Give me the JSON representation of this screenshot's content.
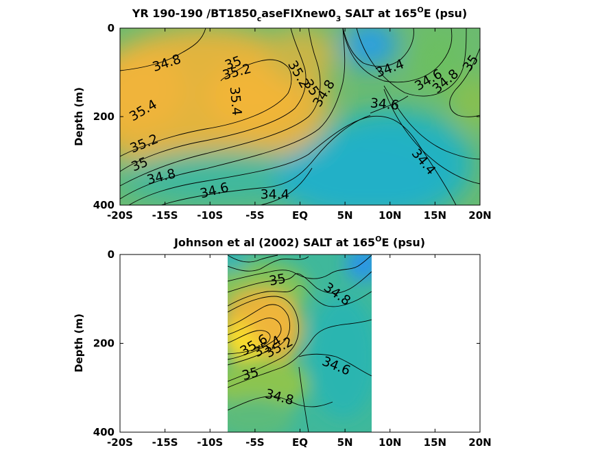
{
  "chart_data": [
    {
      "type": "heatmap",
      "title_main": "YR 190-190 /BT1850",
      "title_sub": "c",
      "title_mid": "aseFIXnew0",
      "title_sub2": "3",
      "title_tail_a": " SALT at 165",
      "title_sup": "O",
      "title_tail_b": "E (psu)",
      "ylabel": "Depth (m)",
      "xlim": [
        -20,
        20
      ],
      "ylim": [
        0,
        400
      ],
      "x_ticks": [
        "-20S",
        "-15S",
        "-10S",
        "-5S",
        "EQ",
        "5N",
        "10N",
        "15N",
        "20N"
      ],
      "y_ticks": [
        "0",
        "200",
        "400"
      ],
      "contour_labels": [
        {
          "text": "34.8",
          "x": -14.8,
          "y": 80,
          "angle": -18
        },
        {
          "text": "35",
          "x": -7.4,
          "y": 80,
          "angle": -20
        },
        {
          "text": "35.2",
          "x": -7.0,
          "y": 100,
          "angle": -15
        },
        {
          "text": "35.4",
          "x": -7.2,
          "y": 165,
          "angle": 85
        },
        {
          "text": "35.2",
          "x": -0.2,
          "y": 105,
          "angle": 60
        },
        {
          "text": "35",
          "x": 1.2,
          "y": 135,
          "angle": 55
        },
        {
          "text": "34.8",
          "x": 2.7,
          "y": 148,
          "angle": -58
        },
        {
          "text": "34.4",
          "x": 10.0,
          "y": 92,
          "angle": -20
        },
        {
          "text": "34.6",
          "x": 14.3,
          "y": 118,
          "angle": -30
        },
        {
          "text": "34.8",
          "x": 16.2,
          "y": 121,
          "angle": -40
        },
        {
          "text": "35",
          "x": 19.0,
          "y": 80,
          "angle": -55
        },
        {
          "text": "34.6",
          "x": 9.4,
          "y": 173,
          "angle": 5
        },
        {
          "text": "34.4",
          "x": 13.7,
          "y": 303,
          "angle": 50
        },
        {
          "text": "35.4",
          "x": -17.4,
          "y": 187,
          "angle": -30
        },
        {
          "text": "35.2",
          "x": -17.3,
          "y": 262,
          "angle": -22
        },
        {
          "text": "35",
          "x": -17.8,
          "y": 309,
          "angle": -22
        },
        {
          "text": "34.8",
          "x": -15.4,
          "y": 337,
          "angle": -14
        },
        {
          "text": "34.6",
          "x": -9.5,
          "y": 368,
          "angle": -14
        },
        {
          "text": "34.4",
          "x": -2.8,
          "y": 377,
          "angle": 0
        }
      ],
      "colormap": "parula",
      "note_colors": {
        "high": "#e9b83a",
        "mid": "#7fc057",
        "low": "#2aa4d8"
      }
    },
    {
      "type": "heatmap",
      "title_main": "Johnson et al (2002) SALT at 165",
      "title_sup": "O",
      "title_tail_b": "E (psu)",
      "ylabel": "Depth (m)",
      "xlim": [
        -20,
        20
      ],
      "ylim": [
        0,
        400
      ],
      "data_x_range": [
        -8,
        8
      ],
      "x_ticks": [
        "-20S",
        "-15S",
        "-10S",
        "-5S",
        "EQ",
        "5N",
        "10N",
        "15N",
        "20N"
      ],
      "y_ticks": [
        "0",
        "200",
        "400"
      ],
      "contour_labels": [
        {
          "text": "35",
          "x": -2.5,
          "y": 58,
          "angle": -10
        },
        {
          "text": "34.8",
          "x": 4.1,
          "y": 90,
          "angle": 35
        },
        {
          "text": "35.6",
          "x": -5.1,
          "y": 205,
          "angle": -30
        },
        {
          "text": "35.4",
          "x": -3.6,
          "y": 208,
          "angle": -30
        },
        {
          "text": "35.2",
          "x": -2.3,
          "y": 210,
          "angle": -28
        },
        {
          "text": "34.6",
          "x": 4.0,
          "y": 252,
          "angle": 22
        },
        {
          "text": "35",
          "x": -5.5,
          "y": 270,
          "angle": -15
        },
        {
          "text": "34.8",
          "x": -2.3,
          "y": 322,
          "angle": 15
        }
      ],
      "colormap": "parula"
    }
  ]
}
